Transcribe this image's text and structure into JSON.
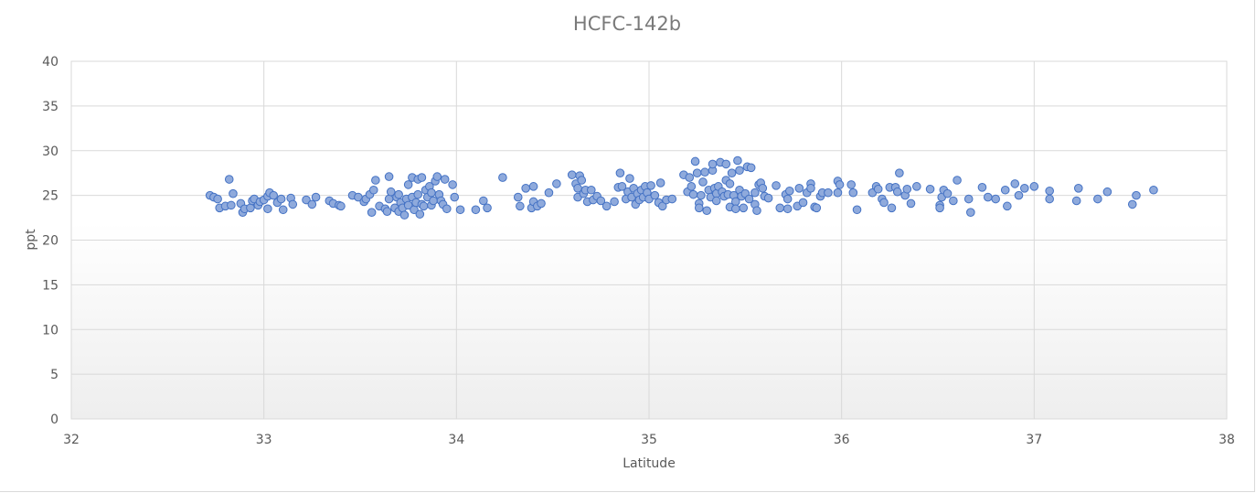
{
  "chart_data": {
    "type": "scatter",
    "title": "HCFC-142b",
    "xlabel": "Latitude",
    "ylabel": "ppt",
    "xlim": [
      32,
      38
    ],
    "ylim": [
      0,
      40
    ],
    "x_ticks": [
      32,
      33,
      34,
      35,
      36,
      37,
      38
    ],
    "y_ticks": [
      0,
      5,
      10,
      15,
      20,
      25,
      30,
      35,
      40
    ],
    "grid": true,
    "legend": "none",
    "marker_color": "#8faadc",
    "marker_edge_color": "#4472c4",
    "series": [
      {
        "points": [
          [
            32.72,
            25.0
          ],
          [
            32.74,
            24.8
          ],
          [
            32.76,
            24.6
          ],
          [
            32.77,
            23.6
          ],
          [
            32.8,
            23.8
          ],
          [
            32.82,
            26.8
          ],
          [
            32.83,
            23.9
          ],
          [
            32.84,
            25.2
          ],
          [
            32.88,
            24.1
          ],
          [
            32.89,
            23.1
          ],
          [
            32.9,
            23.5
          ],
          [
            32.93,
            23.6
          ],
          [
            32.94,
            24.4
          ],
          [
            32.95,
            24.6
          ],
          [
            32.97,
            23.9
          ],
          [
            32.98,
            24.3
          ],
          [
            33.0,
            24.5
          ],
          [
            33.02,
            24.9
          ],
          [
            33.02,
            23.5
          ],
          [
            33.03,
            25.3
          ],
          [
            33.05,
            25.0
          ],
          [
            33.07,
            24.2
          ],
          [
            33.09,
            24.6
          ],
          [
            33.1,
            23.4
          ],
          [
            33.14,
            24.7
          ],
          [
            33.15,
            24.0
          ],
          [
            33.22,
            24.5
          ],
          [
            33.25,
            24.0
          ],
          [
            33.27,
            24.8
          ],
          [
            33.34,
            24.4
          ],
          [
            33.36,
            24.1
          ],
          [
            33.39,
            23.9
          ],
          [
            33.4,
            23.8
          ],
          [
            33.46,
            25.0
          ],
          [
            33.49,
            24.8
          ],
          [
            33.52,
            24.3
          ],
          [
            33.53,
            24.6
          ],
          [
            33.55,
            25.1
          ],
          [
            33.56,
            23.1
          ],
          [
            33.57,
            25.6
          ],
          [
            33.58,
            26.7
          ],
          [
            33.6,
            23.8
          ],
          [
            33.63,
            23.5
          ],
          [
            33.64,
            23.2
          ],
          [
            33.65,
            27.1
          ],
          [
            33.65,
            24.6
          ],
          [
            33.66,
            25.4
          ],
          [
            33.68,
            23.6
          ],
          [
            33.69,
            24.8
          ],
          [
            33.7,
            23.2
          ],
          [
            33.7,
            25.1
          ],
          [
            33.71,
            24.2
          ],
          [
            33.72,
            23.6
          ],
          [
            33.73,
            22.8
          ],
          [
            33.74,
            24.6
          ],
          [
            33.75,
            26.2
          ],
          [
            33.75,
            23.9
          ],
          [
            33.77,
            27.0
          ],
          [
            33.77,
            24.8
          ],
          [
            33.78,
            23.4
          ],
          [
            33.79,
            24.2
          ],
          [
            33.8,
            26.8
          ],
          [
            33.8,
            25.1
          ],
          [
            33.81,
            22.9
          ],
          [
            33.82,
            24.0
          ],
          [
            33.82,
            27.0
          ],
          [
            33.83,
            23.8
          ],
          [
            33.84,
            25.6
          ],
          [
            33.85,
            24.8
          ],
          [
            33.86,
            26.0
          ],
          [
            33.87,
            23.9
          ],
          [
            33.87,
            25.3
          ],
          [
            33.88,
            24.4
          ],
          [
            33.89,
            26.6
          ],
          [
            33.9,
            27.1
          ],
          [
            33.91,
            25.1
          ],
          [
            33.92,
            24.4
          ],
          [
            33.93,
            24.0
          ],
          [
            33.94,
            26.8
          ],
          [
            33.95,
            23.5
          ],
          [
            33.98,
            26.2
          ],
          [
            33.99,
            24.8
          ],
          [
            34.02,
            23.4
          ],
          [
            34.1,
            23.4
          ],
          [
            34.14,
            24.4
          ],
          [
            34.16,
            23.6
          ],
          [
            34.24,
            27.0
          ],
          [
            34.32,
            24.8
          ],
          [
            34.33,
            23.8
          ],
          [
            34.36,
            25.8
          ],
          [
            34.39,
            23.6
          ],
          [
            34.4,
            24.3
          ],
          [
            34.4,
            26.0
          ],
          [
            34.42,
            23.8
          ],
          [
            34.44,
            24.1
          ],
          [
            34.48,
            25.3
          ],
          [
            34.52,
            26.3
          ],
          [
            34.6,
            27.3
          ],
          [
            34.62,
            26.3
          ],
          [
            34.63,
            24.8
          ],
          [
            34.63,
            25.8
          ],
          [
            34.64,
            27.2
          ],
          [
            34.65,
            26.7
          ],
          [
            34.66,
            25.2
          ],
          [
            34.67,
            25.6
          ],
          [
            34.68,
            24.3
          ],
          [
            34.7,
            25.6
          ],
          [
            34.71,
            24.5
          ],
          [
            34.73,
            24.9
          ],
          [
            34.75,
            24.4
          ],
          [
            34.78,
            23.8
          ],
          [
            34.82,
            24.3
          ],
          [
            34.84,
            25.9
          ],
          [
            34.85,
            27.5
          ],
          [
            34.86,
            26.0
          ],
          [
            34.88,
            24.6
          ],
          [
            34.89,
            25.4
          ],
          [
            34.9,
            26.9
          ],
          [
            34.91,
            24.8
          ],
          [
            34.92,
            25.8
          ],
          [
            34.93,
            24.0
          ],
          [
            34.94,
            25.2
          ],
          [
            34.95,
            24.5
          ],
          [
            34.96,
            25.6
          ],
          [
            34.97,
            24.8
          ],
          [
            34.98,
            26.0
          ],
          [
            34.99,
            25.3
          ],
          [
            35.0,
            24.6
          ],
          [
            35.01,
            26.1
          ],
          [
            35.03,
            25.0
          ],
          [
            35.05,
            24.2
          ],
          [
            35.06,
            26.4
          ],
          [
            35.07,
            23.8
          ],
          [
            35.09,
            24.5
          ],
          [
            35.12,
            24.6
          ],
          [
            35.18,
            27.3
          ],
          [
            35.2,
            25.4
          ],
          [
            35.21,
            27.0
          ],
          [
            35.22,
            26.0
          ],
          [
            35.23,
            25.1
          ],
          [
            35.24,
            28.8
          ],
          [
            35.25,
            27.5
          ],
          [
            35.26,
            24.1
          ],
          [
            35.26,
            23.6
          ],
          [
            35.27,
            25.0
          ],
          [
            35.28,
            26.5
          ],
          [
            35.29,
            27.6
          ],
          [
            35.3,
            23.3
          ],
          [
            35.31,
            25.6
          ],
          [
            35.32,
            24.8
          ],
          [
            35.33,
            27.8
          ],
          [
            35.33,
            28.5
          ],
          [
            35.34,
            25.8
          ],
          [
            35.35,
            25.2
          ],
          [
            35.35,
            24.4
          ],
          [
            35.36,
            26.0
          ],
          [
            35.37,
            28.7
          ],
          [
            35.38,
            25.4
          ],
          [
            35.39,
            24.9
          ],
          [
            35.4,
            26.7
          ],
          [
            35.4,
            28.5
          ],
          [
            35.41,
            25.1
          ],
          [
            35.42,
            23.7
          ],
          [
            35.42,
            26.3
          ],
          [
            35.43,
            27.5
          ],
          [
            35.44,
            25.0
          ],
          [
            35.45,
            24.3
          ],
          [
            35.45,
            23.5
          ],
          [
            35.46,
            28.9
          ],
          [
            35.47,
            25.6
          ],
          [
            35.47,
            27.8
          ],
          [
            35.48,
            24.9
          ],
          [
            35.49,
            23.6
          ],
          [
            35.5,
            25.2
          ],
          [
            35.51,
            28.2
          ],
          [
            35.52,
            24.6
          ],
          [
            35.53,
            28.1
          ],
          [
            35.55,
            24.0
          ],
          [
            35.55,
            25.3
          ],
          [
            35.56,
            23.3
          ],
          [
            35.57,
            26.2
          ],
          [
            35.58,
            26.4
          ],
          [
            35.59,
            25.8
          ],
          [
            35.6,
            24.9
          ],
          [
            35.62,
            24.7
          ],
          [
            35.66,
            26.1
          ],
          [
            35.68,
            23.6
          ],
          [
            35.71,
            25.1
          ],
          [
            35.72,
            23.5
          ],
          [
            35.72,
            24.6
          ],
          [
            35.73,
            25.5
          ],
          [
            35.77,
            23.8
          ],
          [
            35.78,
            25.8
          ],
          [
            35.8,
            24.2
          ],
          [
            35.82,
            25.3
          ],
          [
            35.84,
            26.3
          ],
          [
            35.84,
            25.8
          ],
          [
            35.86,
            23.7
          ],
          [
            35.87,
            23.6
          ],
          [
            35.89,
            24.9
          ],
          [
            35.9,
            25.3
          ],
          [
            35.93,
            25.3
          ],
          [
            35.98,
            25.3
          ],
          [
            35.98,
            26.6
          ],
          [
            35.99,
            26.2
          ],
          [
            36.05,
            26.2
          ],
          [
            36.06,
            25.3
          ],
          [
            36.08,
            23.4
          ],
          [
            36.16,
            25.3
          ],
          [
            36.18,
            26.0
          ],
          [
            36.19,
            25.7
          ],
          [
            36.21,
            24.6
          ],
          [
            36.22,
            24.2
          ],
          [
            36.25,
            25.9
          ],
          [
            36.26,
            23.6
          ],
          [
            36.28,
            25.9
          ],
          [
            36.29,
            25.4
          ],
          [
            36.3,
            27.5
          ],
          [
            36.33,
            25.0
          ],
          [
            36.34,
            25.7
          ],
          [
            36.36,
            24.1
          ],
          [
            36.39,
            26.0
          ],
          [
            36.46,
            25.7
          ],
          [
            36.51,
            23.9
          ],
          [
            36.51,
            23.6
          ],
          [
            36.52,
            24.8
          ],
          [
            36.53,
            25.6
          ],
          [
            36.55,
            25.2
          ],
          [
            36.58,
            24.4
          ],
          [
            36.6,
            26.7
          ],
          [
            36.66,
            24.6
          ],
          [
            36.67,
            23.1
          ],
          [
            36.73,
            25.9
          ],
          [
            36.76,
            24.8
          ],
          [
            36.8,
            24.6
          ],
          [
            36.85,
            25.6
          ],
          [
            36.86,
            23.8
          ],
          [
            36.9,
            26.3
          ],
          [
            36.92,
            25.0
          ],
          [
            36.95,
            25.8
          ],
          [
            37.0,
            26.0
          ],
          [
            37.08,
            25.5
          ],
          [
            37.08,
            24.6
          ],
          [
            37.22,
            24.4
          ],
          [
            37.23,
            25.8
          ],
          [
            37.33,
            24.6
          ],
          [
            37.38,
            25.4
          ],
          [
            37.51,
            24.0
          ],
          [
            37.53,
            25.0
          ],
          [
            37.62,
            25.6
          ]
        ]
      }
    ]
  }
}
